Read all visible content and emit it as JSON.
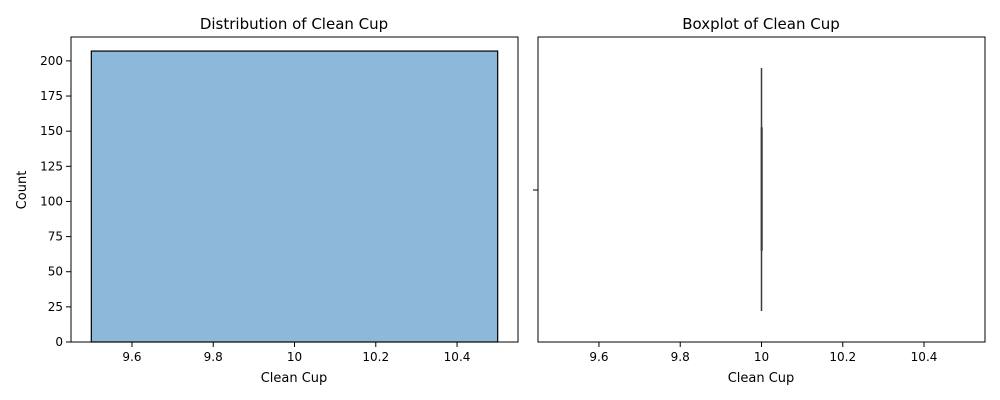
{
  "chart_data": [
    {
      "type": "bar",
      "title": "Distribution of Clean Cup",
      "xlabel": "Clean Cup",
      "ylabel": "Count",
      "xlim": [
        9.45,
        10.55
      ],
      "ylim": [
        0,
        217
      ],
      "xticks": [
        9.6,
        9.8,
        10.0,
        10.2,
        10.4
      ],
      "yticks": [
        0,
        25,
        50,
        75,
        100,
        125,
        150,
        175,
        200
      ],
      "bins": [
        {
          "x_start": 9.5,
          "x_end": 10.5,
          "count": 207
        }
      ],
      "bar_color": "#8db8d9",
      "edge_color": "#000000",
      "grid": false
    },
    {
      "type": "boxplot",
      "title": "Boxplot of Clean Cup",
      "xlabel": "Clean Cup",
      "ylabel": "",
      "xlim": [
        9.45,
        10.55
      ],
      "xticks": [
        9.6,
        9.8,
        10.0,
        10.2,
        10.4
      ],
      "stats": {
        "min": 10.0,
        "q1": 10.0,
        "median": 10.0,
        "q3": 10.0,
        "max": 10.0
      },
      "line_color": "#3d3d3d",
      "grid": false
    }
  ]
}
